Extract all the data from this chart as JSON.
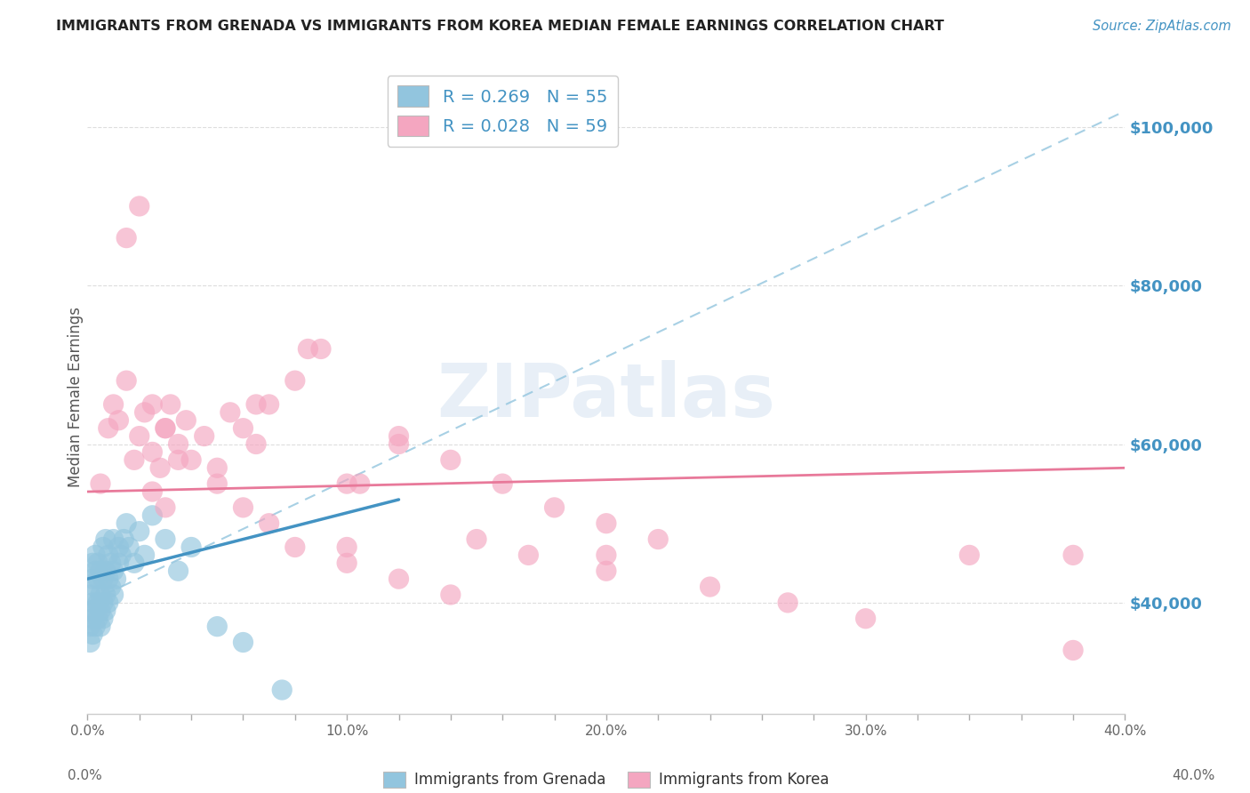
{
  "title": "IMMIGRANTS FROM GRENADA VS IMMIGRANTS FROM KOREA MEDIAN FEMALE EARNINGS CORRELATION CHART",
  "source": "Source: ZipAtlas.com",
  "xlabel_bottom_left": "0.0%",
  "xlabel_bottom_right": "40.0%",
  "xlabel_bottom_labels": [
    "Immigrants from Grenada",
    "Immigrants from Korea"
  ],
  "ylabel": "Median Female Earnings",
  "xlim": [
    0.0,
    0.4
  ],
  "ylim": [
    26000,
    106000
  ],
  "xtick_labels": [
    "0.0%",
    "",
    "",
    "",
    "",
    "10.0%",
    "",
    "",
    "",
    "",
    "20.0%",
    "",
    "",
    "",
    "",
    "30.0%",
    "",
    "",
    "",
    "",
    "40.0%"
  ],
  "xtick_values": [
    0.0,
    0.02,
    0.04,
    0.06,
    0.08,
    0.1,
    0.12,
    0.14,
    0.16,
    0.18,
    0.2,
    0.22,
    0.24,
    0.26,
    0.28,
    0.3,
    0.32,
    0.34,
    0.36,
    0.38,
    0.4
  ],
  "ytick_labels": [
    "$40,000",
    "$60,000",
    "$80,000",
    "$100,000"
  ],
  "ytick_values": [
    40000,
    60000,
    80000,
    100000
  ],
  "legend1_R": "0.269",
  "legend1_N": "55",
  "legend2_R": "0.028",
  "legend2_N": "59",
  "color_blue": "#92C5DE",
  "color_pink": "#F4A6C0",
  "color_blue_line": "#4393C3",
  "color_pink_line": "#E8799A",
  "color_dashed": "#92C5DE",
  "title_color": "#222222",
  "axis_label_color": "#555555",
  "ytick_color": "#4393C3",
  "background_color": "#FFFFFF",
  "blue_line_x0": 0.0,
  "blue_line_y0": 43000,
  "blue_line_x1": 0.12,
  "blue_line_y1": 53000,
  "pink_line_x0": 0.0,
  "pink_line_y0": 54000,
  "pink_line_x1": 0.4,
  "pink_line_y1": 57000,
  "dashed_line_x0": 0.0,
  "dashed_line_y0": 40000,
  "dashed_line_x1": 0.4,
  "dashed_line_y1": 102000,
  "scatter_blue_x": [
    0.001,
    0.001,
    0.001,
    0.001,
    0.002,
    0.002,
    0.002,
    0.002,
    0.002,
    0.003,
    0.003,
    0.003,
    0.003,
    0.003,
    0.004,
    0.004,
    0.004,
    0.004,
    0.005,
    0.005,
    0.005,
    0.005,
    0.006,
    0.006,
    0.006,
    0.006,
    0.007,
    0.007,
    0.007,
    0.007,
    0.008,
    0.008,
    0.008,
    0.009,
    0.009,
    0.01,
    0.01,
    0.01,
    0.011,
    0.012,
    0.012,
    0.013,
    0.014,
    0.015,
    0.016,
    0.018,
    0.02,
    0.022,
    0.025,
    0.03,
    0.035,
    0.04,
    0.05,
    0.06,
    0.075
  ],
  "scatter_blue_y": [
    35000,
    37000,
    39000,
    41000,
    36000,
    38000,
    40000,
    43000,
    45000,
    37000,
    39000,
    42000,
    44000,
    46000,
    38000,
    40000,
    43000,
    45000,
    37000,
    39000,
    41000,
    44000,
    38000,
    40000,
    43000,
    47000,
    39000,
    41000,
    44000,
    48000,
    40000,
    43000,
    46000,
    42000,
    45000,
    41000,
    44000,
    48000,
    43000,
    45000,
    47000,
    46000,
    48000,
    50000,
    47000,
    45000,
    49000,
    46000,
    51000,
    48000,
    44000,
    47000,
    37000,
    35000,
    29000
  ],
  "scatter_pink_x": [
    0.005,
    0.008,
    0.01,
    0.012,
    0.015,
    0.018,
    0.02,
    0.022,
    0.025,
    0.028,
    0.03,
    0.032,
    0.035,
    0.038,
    0.04,
    0.045,
    0.05,
    0.055,
    0.06,
    0.065,
    0.07,
    0.08,
    0.09,
    0.1,
    0.12,
    0.14,
    0.16,
    0.18,
    0.2,
    0.22,
    0.015,
    0.02,
    0.025,
    0.03,
    0.035,
    0.05,
    0.06,
    0.07,
    0.08,
    0.1,
    0.12,
    0.14,
    0.15,
    0.17,
    0.2,
    0.24,
    0.27,
    0.3,
    0.34,
    0.38,
    0.1,
    0.105,
    0.2,
    0.025,
    0.03,
    0.12,
    0.065,
    0.085,
    0.38
  ],
  "scatter_pink_y": [
    55000,
    62000,
    65000,
    63000,
    68000,
    58000,
    61000,
    64000,
    59000,
    57000,
    62000,
    65000,
    60000,
    63000,
    58000,
    61000,
    57000,
    64000,
    62000,
    60000,
    65000,
    68000,
    72000,
    55000,
    60000,
    58000,
    55000,
    52000,
    50000,
    48000,
    86000,
    90000,
    65000,
    62000,
    58000,
    55000,
    52000,
    50000,
    47000,
    45000,
    43000,
    41000,
    48000,
    46000,
    44000,
    42000,
    40000,
    38000,
    46000,
    46000,
    47000,
    55000,
    46000,
    54000,
    52000,
    61000,
    65000,
    72000,
    34000
  ]
}
